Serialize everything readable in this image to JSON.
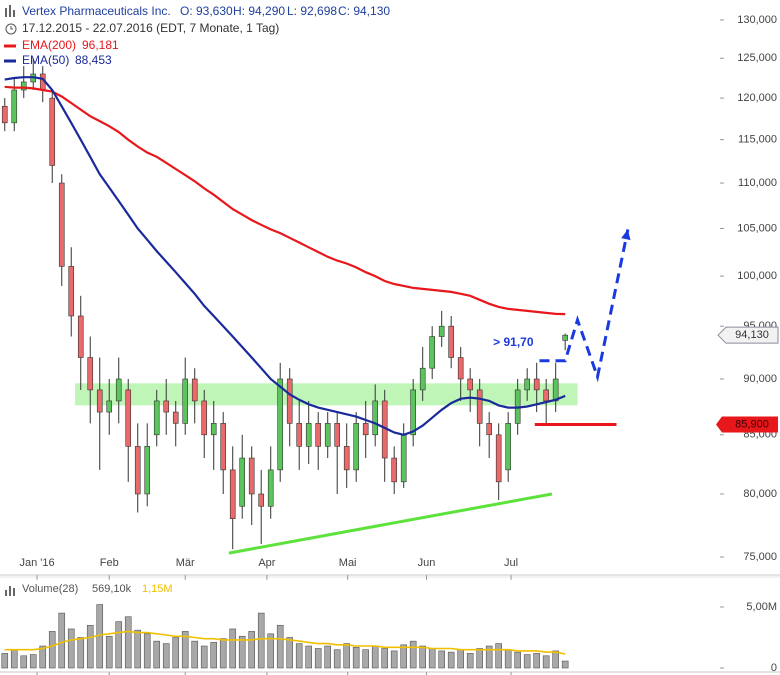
{
  "chart_data": [
    {
      "type": "candlestick",
      "title": "Vertex Pharmaceuticals Inc.",
      "quote": [
        "O: 93,630",
        "H: 94,290",
        "L: 92,698",
        "C: 94,130"
      ],
      "subtitle": "17.12.2015 - 22.07.2016 (EDT, 7 Monate, 1 Tag)",
      "open": [
        119,
        117,
        121,
        122,
        123,
        120,
        110,
        101,
        96,
        92,
        89,
        87,
        88,
        89,
        84,
        80,
        85,
        88,
        87,
        86,
        90,
        88,
        85,
        86,
        82,
        79,
        83,
        80,
        79,
        82,
        90,
        86,
        84,
        86,
        84,
        86,
        84,
        82,
        86,
        85,
        88,
        83,
        81,
        85,
        89,
        91,
        94,
        95,
        92,
        90,
        89,
        86,
        85,
        82,
        86,
        89,
        90,
        89,
        88,
        93.63
      ],
      "high": [
        120,
        122.5,
        124,
        125,
        124,
        121,
        111,
        103,
        98,
        94,
        92,
        90,
        92,
        90,
        86,
        86,
        89,
        90,
        88,
        92,
        91,
        89,
        88,
        87,
        84,
        85,
        84,
        82,
        84,
        91.5,
        91,
        88,
        88,
        87,
        87,
        87,
        86,
        87,
        88,
        89.5,
        89,
        84,
        86,
        90,
        93,
        95,
        96.5,
        96,
        93,
        91,
        90,
        87,
        86,
        87,
        90,
        91,
        91.5,
        90,
        91.5,
        94.29
      ],
      "low": [
        116,
        116,
        120,
        121,
        119.5,
        110,
        99,
        94,
        89,
        86,
        82,
        85,
        86,
        81,
        78.5,
        79,
        84,
        85,
        84,
        85,
        86,
        83,
        82,
        80,
        75.6,
        78,
        77.5,
        76,
        78,
        81,
        84,
        82,
        82.5,
        82,
        83,
        80,
        80.5,
        81,
        83,
        84,
        81,
        80,
        80.5,
        84,
        88,
        90,
        93,
        91,
        88,
        87,
        84,
        83,
        79.5,
        81,
        85,
        88,
        87,
        86,
        87,
        92.698
      ],
      "close": [
        117,
        121,
        122,
        123,
        121,
        112,
        101,
        96,
        92,
        89,
        87,
        88,
        90,
        84,
        80,
        84,
        88,
        87,
        86,
        90,
        88,
        85,
        86,
        82,
        78,
        83,
        80,
        79,
        82,
        90,
        86,
        84,
        86,
        84,
        86,
        84,
        82,
        86,
        85,
        88,
        83,
        81,
        85,
        89,
        91,
        94,
        95,
        92,
        90,
        89,
        86,
        85,
        81,
        86,
        89,
        90,
        89,
        88,
        90,
        94.13
      ],
      "up_color": "#5cc45c",
      "down_color": "#e86a6a",
      "series": [
        {
          "name": "EMA(200)",
          "legend_value": "96,181",
          "color": "#e8171b",
          "values": [
            121.4,
            121.3,
            121.3,
            121.2,
            121.0,
            120.8,
            120.2,
            119.4,
            118.6,
            117.8,
            117.2,
            116.6,
            115.9,
            115.0,
            114.2,
            113.5,
            113.0,
            112.3,
            111.6,
            110.9,
            110.2,
            109.4,
            108.7,
            107.9,
            107.1,
            106.5,
            105.9,
            105.4,
            104.9,
            104.5,
            104.0,
            103.5,
            103.0,
            102.5,
            102.0,
            101.6,
            101.3,
            100.9,
            100.4,
            100.0,
            99.5,
            99.2,
            99.0,
            98.8,
            98.7,
            98.6,
            98.5,
            98.4,
            98.2,
            98.0,
            97.6,
            97.2,
            96.9,
            96.7,
            96.6,
            96.5,
            96.4,
            96.3,
            96.2,
            96.18
          ]
        },
        {
          "name": "EMA(50)",
          "legend_value": "88,453",
          "color": "#1a2a9a",
          "values": [
            122.3,
            122.5,
            122.6,
            122.6,
            122.4,
            121.0,
            119.0,
            117.0,
            115.0,
            113.0,
            111.0,
            109.5,
            108.0,
            106.5,
            105.0,
            103.8,
            102.6,
            101.5,
            100.4,
            99.3,
            98.2,
            97.0,
            96.0,
            95.0,
            94.0,
            93.0,
            92.0,
            91.0,
            90.0,
            89.3,
            88.6,
            88.1,
            87.7,
            87.4,
            87.2,
            87.0,
            86.8,
            86.6,
            86.3,
            86.0,
            85.6,
            85.2,
            85.0,
            85.3,
            85.8,
            86.5,
            87.2,
            87.8,
            88.2,
            88.3,
            88.2,
            88.0,
            87.6,
            87.4,
            87.4,
            87.5,
            87.7,
            87.9,
            88.1,
            88.45
          ]
        }
      ],
      "xlim": [
        0,
        75.8
      ],
      "xticks": [
        {
          "value": 3.9,
          "label": "Jan '16"
        },
        {
          "value": 11.5,
          "label": "Feb"
        },
        {
          "value": 19.5,
          "label": "Mär"
        },
        {
          "value": 28.1,
          "label": "Apr"
        },
        {
          "value": 36.6,
          "label": "Mai"
        },
        {
          "value": 44.9,
          "label": "Jun"
        },
        {
          "value": 53.8,
          "label": "Jul"
        }
      ],
      "ylim": [
        73.63,
        131.6
      ],
      "yticks": [
        {
          "value": 75,
          "label": "75,000"
        },
        {
          "value": 80,
          "label": "80,000"
        },
        {
          "value": 85,
          "label": "85,000"
        },
        {
          "value": 90,
          "label": "90,000"
        },
        {
          "value": 95,
          "label": "95,000"
        },
        {
          "value": 100,
          "label": "100,000"
        },
        {
          "value": 105,
          "label": "105,000"
        },
        {
          "value": 110,
          "label": "110,000"
        },
        {
          "value": 115,
          "label": "115,000"
        },
        {
          "value": 120,
          "label": "120,000"
        },
        {
          "value": 125,
          "label": "125,000"
        },
        {
          "value": 130,
          "label": "130,000"
        }
      ],
      "log_scale": true,
      "last_price": {
        "value": 94.13,
        "label": "94,130"
      },
      "support_zone": {
        "xlim": [
          7.9,
          60.8
        ],
        "ylim": [
          87.6,
          89.6
        ],
        "color": "#b4f5ac"
      },
      "trendline": {
        "x": [
          24.1,
          58.1
        ],
        "y": [
          75.3,
          80.0
        ],
        "color": "#5de23c"
      },
      "level": {
        "value": 85.9,
        "label": "85,900",
        "x": [
          56.3,
          64.9
        ],
        "color": "#e8171b"
      },
      "projection": {
        "x": [
          56.8,
          59.5,
          60.8,
          62.9,
          66.1
        ],
        "y": [
          91.7,
          91.7,
          95.6,
          90.2,
          104.9
        ],
        "label": "> 91,70",
        "color": "#1a3adf"
      }
    },
    {
      "type": "bar",
      "title": "Volume(28)",
      "legend_values": [
        "569,10k",
        "1,15M"
      ],
      "color": "#a8a8a8",
      "values": [
        1.2,
        1.5,
        1.0,
        1.1,
        1.8,
        3.0,
        4.5,
        3.2,
        2.5,
        3.5,
        5.2,
        2.6,
        3.8,
        4.2,
        3.1,
        2.8,
        2.2,
        2.0,
        2.5,
        3.0,
        2.2,
        1.8,
        2.1,
        2.4,
        3.2,
        2.6,
        3.0,
        4.5,
        2.8,
        3.5,
        2.5,
        2.0,
        1.8,
        1.6,
        1.8,
        1.5,
        2.0,
        1.7,
        1.5,
        1.8,
        1.6,
        1.4,
        1.9,
        2.2,
        1.8,
        1.6,
        1.4,
        1.3,
        1.5,
        1.2,
        1.6,
        1.8,
        2.0,
        1.5,
        1.3,
        1.1,
        1.2,
        1.0,
        1.4,
        0.5691
      ],
      "average": {
        "color": "#f0c000",
        "values": [
          1.5,
          1.5,
          1.5,
          1.5,
          1.6,
          1.8,
          2.1,
          2.3,
          2.4,
          2.5,
          2.7,
          2.8,
          2.9,
          3.0,
          2.9,
          2.9,
          2.8,
          2.7,
          2.6,
          2.6,
          2.5,
          2.4,
          2.4,
          2.3,
          2.3,
          2.3,
          2.3,
          2.4,
          2.4,
          2.4,
          2.3,
          2.2,
          2.1,
          2.0,
          2.0,
          1.9,
          1.9,
          1.8,
          1.8,
          1.8,
          1.7,
          1.7,
          1.7,
          1.7,
          1.7,
          1.6,
          1.6,
          1.6,
          1.5,
          1.5,
          1.5,
          1.5,
          1.5,
          1.5,
          1.4,
          1.4,
          1.4,
          1.3,
          1.3,
          1.15
        ]
      },
      "ylim": [
        0,
        6.8
      ],
      "yticks": [
        0,
        {
          "value": 5,
          "label": "5,00M"
        }
      ]
    }
  ]
}
